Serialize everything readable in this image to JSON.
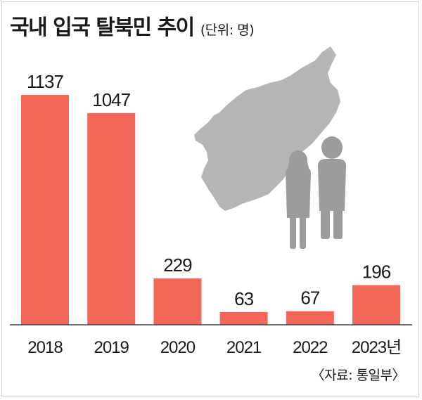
{
  "title": "국내 입국 탈북민 추이",
  "unit": "(단위: 명)",
  "source": "〈자료: 통일부〉",
  "colors": {
    "bar": "#f36659",
    "map": "#b5b5b5",
    "figures": "#9c9c9c",
    "axis": "#444444",
    "text": "#1a1a1a"
  },
  "illustration": [
    "korean-peninsula-map-icon",
    "people-icon"
  ],
  "chart_data": {
    "type": "bar",
    "categories": [
      "2018",
      "2019",
      "2020",
      "2021",
      "2022",
      "2023년"
    ],
    "values": [
      1137,
      1047,
      229,
      63,
      67,
      196
    ],
    "value_labels": [
      "1137",
      "1047",
      "229",
      "63",
      "67",
      "196"
    ],
    "title": "국내 입국 탈북민 추이",
    "ylabel": "",
    "xlabel": "",
    "ylim": [
      0,
      1137
    ],
    "grid": false,
    "legend": "none"
  }
}
